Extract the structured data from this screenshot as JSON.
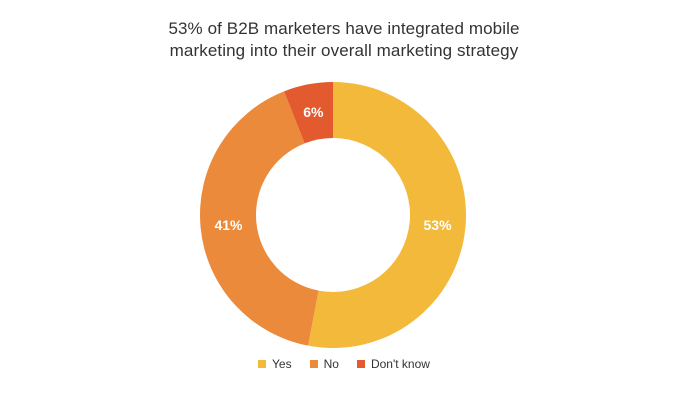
{
  "chart_data": {
    "type": "pie",
    "title_lines": [
      "53% of B2B marketers have integrated mobile",
      "marketing into their overall marketing strategy"
    ],
    "categories": [
      "Yes",
      "No",
      "Don't know"
    ],
    "values": [
      53,
      41,
      6
    ],
    "labels": [
      "53%",
      "41%",
      "6%"
    ],
    "colors": [
      "#F2B93B",
      "#EC8A3C",
      "#E35A2E"
    ],
    "donut": true,
    "legend_position": "bottom"
  }
}
